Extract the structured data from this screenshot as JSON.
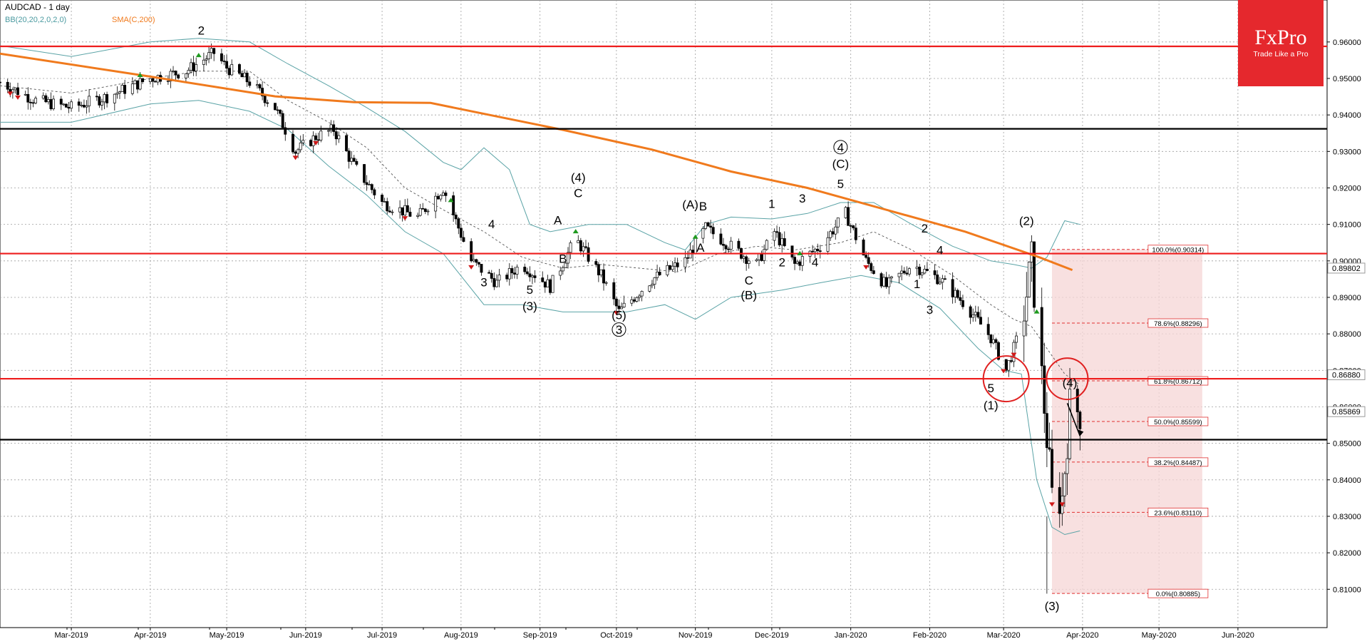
{
  "header": {
    "title": "AUDCAD - 1 day",
    "bb_label": "BB(20,20,2,0,2,0)",
    "sma_label": "SMA(C,200)"
  },
  "logo": {
    "name": "FxPro",
    "tagline": "Trade Like a Pro"
  },
  "colors": {
    "background": "#ffffff",
    "level_red": "#ee1c1c",
    "level_black": "#000000",
    "sma": "#f07a1d",
    "bollinger": "#5aa3a6",
    "grid": "#9e9e9e",
    "fib_zone": "#f6d5d5",
    "fib_line": "#e03030",
    "logo_bg": "#e5282d"
  },
  "chart_data": {
    "type": "candlestick",
    "symbol": "AUDCAD",
    "timeframe": "1 day",
    "xlim": [
      "2019-02-01",
      "2020-07-06"
    ],
    "ylim": [
      0.7995,
      0.9715
    ],
    "price_ticks": [
      "0.96000",
      "0.95000",
      "0.94000",
      "0.93000",
      "0.92000",
      "0.91000",
      "0.90000",
      "0.89000",
      "0.88000",
      "0.87000",
      "0.86000",
      "0.85000",
      "0.84000",
      "0.83000",
      "0.82000",
      "0.81000"
    ],
    "month_ticks": [
      {
        "label": "Mar-2019",
        "date": "2019-03-01"
      },
      {
        "label": "Apr-2019",
        "date": "2019-04-01"
      },
      {
        "label": "May-2019",
        "date": "2019-05-01"
      },
      {
        "label": "Jun-2019",
        "date": "2019-06-01"
      },
      {
        "label": "Jul-2019",
        "date": "2019-07-01"
      },
      {
        "label": "Aug-2019",
        "date": "2019-08-01"
      },
      {
        "label": "Sep-2019",
        "date": "2019-09-01"
      },
      {
        "label": "Oct-2019",
        "date": "2019-10-01"
      },
      {
        "label": "Nov-2019",
        "date": "2019-11-01"
      },
      {
        "label": "Dec-2019",
        "date": "2019-12-01"
      },
      {
        "label": "Jan-2020",
        "date": "2020-01-01"
      },
      {
        "label": "Feb-2020",
        "date": "2020-02-01"
      },
      {
        "label": "Mar-2020",
        "date": "2020-03-01"
      },
      {
        "label": "Apr-2020",
        "date": "2020-04-01"
      },
      {
        "label": "May-2020",
        "date": "2020-05-01"
      },
      {
        "label": "Jun-2020",
        "date": "2020-06-01"
      }
    ],
    "price_tags": [
      {
        "label": "0.89802",
        "value": 0.89802,
        "color": "#cccccc"
      },
      {
        "label": "0.86880",
        "value": 0.8688,
        "color": "#cccccc"
      },
      {
        "label": "0.85869",
        "value": 0.85869,
        "color": "#cccccc"
      }
    ],
    "levels": [
      {
        "value": 0.9588,
        "color": "red"
      },
      {
        "value": 0.9362,
        "color": "black"
      },
      {
        "value": 0.902,
        "color": "red"
      },
      {
        "value": 0.8677,
        "color": "red"
      },
      {
        "value": 0.851,
        "color": "black"
      }
    ],
    "fibonacci": {
      "start": "2020-03-20",
      "end": "2020-05-18",
      "levels": [
        {
          "label": "100.0%(0.90314)",
          "value": 0.90314
        },
        {
          "label": "78.6%(0.88296)",
          "value": 0.88296
        },
        {
          "label": "61.8%(0.86712)",
          "value": 0.86712
        },
        {
          "label": "50.0%(0.85599)",
          "value": 0.85599
        },
        {
          "label": "38.2%(0.84487)",
          "value": 0.84487
        },
        {
          "label": "23.6%(0.83110)",
          "value": 0.8311
        },
        {
          "label": "0.0%(0.80885)",
          "value": 0.80885
        }
      ]
    },
    "sma200": [
      [
        "2019-02-01",
        0.9568
      ],
      [
        "2019-04-01",
        0.9505
      ],
      [
        "2019-05-20",
        0.9451
      ],
      [
        "2019-06-20",
        0.9435
      ],
      [
        "2019-07-20",
        0.9433
      ],
      [
        "2019-09-10",
        0.9359
      ],
      [
        "2019-10-15",
        0.9305
      ],
      [
        "2019-11-15",
        0.9245
      ],
      [
        "2019-12-15",
        0.92
      ],
      [
        "2020-01-15",
        0.914
      ],
      [
        "2020-02-15",
        0.908
      ],
      [
        "2020-03-15",
        0.901
      ],
      [
        "2020-03-28",
        0.8975
      ]
    ],
    "bollinger_upper": [
      [
        "2019-02-01",
        0.959
      ],
      [
        "2019-03-01",
        0.956
      ],
      [
        "2019-04-01",
        0.96
      ],
      [
        "2019-04-20",
        0.961
      ],
      [
        "2019-05-10",
        0.96
      ],
      [
        "2019-05-25",
        0.954
      ],
      [
        "2019-06-10",
        0.948
      ],
      [
        "2019-06-25",
        0.942
      ],
      [
        "2019-07-10",
        0.9355
      ],
      [
        "2019-07-25",
        0.927
      ],
      [
        "2019-08-01",
        0.925
      ],
      [
        "2019-08-10",
        0.931
      ],
      [
        "2019-08-20",
        0.925
      ],
      [
        "2019-08-28",
        0.91
      ],
      [
        "2019-09-05",
        0.908
      ],
      [
        "2019-09-20",
        0.91
      ],
      [
        "2019-10-05",
        0.91
      ],
      [
        "2019-10-20",
        0.905
      ],
      [
        "2019-10-28",
        0.903
      ],
      [
        "2019-11-05",
        0.91
      ],
      [
        "2019-11-15",
        0.912
      ],
      [
        "2019-12-01",
        0.9115
      ],
      [
        "2019-12-15",
        0.913
      ],
      [
        "2019-12-28",
        0.916
      ],
      [
        "2020-01-10",
        0.916
      ],
      [
        "2020-01-25",
        0.91
      ],
      [
        "2020-02-10",
        0.904
      ],
      [
        "2020-02-25",
        0.9
      ],
      [
        "2020-03-05",
        0.899
      ],
      [
        "2020-03-12",
        0.898
      ],
      [
        "2020-03-18",
        0.901
      ],
      [
        "2020-03-25",
        0.911
      ],
      [
        "2020-03-31",
        0.91
      ]
    ],
    "bollinger_middle": [
      [
        "2019-02-01",
        0.948
      ],
      [
        "2019-03-01",
        0.946
      ],
      [
        "2019-04-01",
        0.95
      ],
      [
        "2019-04-20",
        0.952
      ],
      [
        "2019-05-10",
        0.952
      ],
      [
        "2019-05-25",
        0.944
      ],
      [
        "2019-06-10",
        0.938
      ],
      [
        "2019-06-25",
        0.931
      ],
      [
        "2019-07-10",
        0.92
      ],
      [
        "2019-07-25",
        0.914
      ],
      [
        "2019-08-10",
        0.908
      ],
      [
        "2019-08-25",
        0.901
      ],
      [
        "2019-09-10",
        0.898
      ],
      [
        "2019-09-25",
        0.899
      ],
      [
        "2019-10-10",
        0.898
      ],
      [
        "2019-10-25",
        0.897
      ],
      [
        "2019-11-10",
        0.902
      ],
      [
        "2019-11-25",
        0.904
      ],
      [
        "2019-12-10",
        0.903
      ],
      [
        "2019-12-28",
        0.905
      ],
      [
        "2020-01-10",
        0.908
      ],
      [
        "2020-01-25",
        0.903
      ],
      [
        "2020-02-10",
        0.896
      ],
      [
        "2020-02-25",
        0.888
      ],
      [
        "2020-03-05",
        0.884
      ],
      [
        "2020-03-12",
        0.882
      ],
      [
        "2020-03-18",
        0.876
      ],
      [
        "2020-03-25",
        0.869
      ],
      [
        "2020-03-31",
        0.866
      ]
    ],
    "bollinger_lower": [
      [
        "2019-02-01",
        0.938
      ],
      [
        "2019-03-01",
        0.938
      ],
      [
        "2019-04-01",
        0.943
      ],
      [
        "2019-04-20",
        0.944
      ],
      [
        "2019-05-10",
        0.941
      ],
      [
        "2019-05-25",
        0.936
      ],
      [
        "2019-06-10",
        0.926
      ],
      [
        "2019-06-25",
        0.918
      ],
      [
        "2019-07-10",
        0.908
      ],
      [
        "2019-07-25",
        0.902
      ],
      [
        "2019-08-10",
        0.888
      ],
      [
        "2019-08-25",
        0.888
      ],
      [
        "2019-09-10",
        0.886
      ],
      [
        "2019-09-25",
        0.886
      ],
      [
        "2019-10-05",
        0.886
      ],
      [
        "2019-10-20",
        0.888
      ],
      [
        "2019-11-01",
        0.884
      ],
      [
        "2019-11-15",
        0.89
      ],
      [
        "2019-12-05",
        0.892
      ],
      [
        "2019-12-20",
        0.894
      ],
      [
        "2020-01-05",
        0.896
      ],
      [
        "2020-01-20",
        0.894
      ],
      [
        "2020-02-05",
        0.887
      ],
      [
        "2020-02-20",
        0.876
      ],
      [
        "2020-03-01",
        0.87
      ],
      [
        "2020-03-08",
        0.869
      ],
      [
        "2020-03-14",
        0.84
      ],
      [
        "2020-03-20",
        0.827
      ],
      [
        "2020-03-25",
        0.825
      ],
      [
        "2020-03-31",
        0.826
      ]
    ],
    "close_path": [
      [
        "2019-02-01",
        0.949
      ],
      [
        "2019-02-15",
        0.944
      ],
      [
        "2019-03-01",
        0.942
      ],
      [
        "2019-03-15",
        0.945
      ],
      [
        "2019-04-01",
        0.95
      ],
      [
        "2019-04-15",
        0.952
      ],
      [
        "2019-04-26",
        0.957
      ],
      [
        "2019-05-01",
        0.953
      ],
      [
        "2019-05-10",
        0.949
      ],
      [
        "2019-05-20",
        0.942
      ],
      [
        "2019-05-28",
        0.93
      ],
      [
        "2019-06-05",
        0.934
      ],
      [
        "2019-06-12",
        0.936
      ],
      [
        "2019-06-20",
        0.926
      ],
      [
        "2019-07-01",
        0.916
      ],
      [
        "2019-07-15",
        0.912
      ],
      [
        "2019-07-25",
        0.92
      ],
      [
        "2019-08-05",
        0.9
      ],
      [
        "2019-08-15",
        0.894
      ],
      [
        "2019-08-25",
        0.899
      ],
      [
        "2019-09-05",
        0.893
      ],
      [
        "2019-09-15",
        0.906
      ],
      [
        "2019-09-25",
        0.896
      ],
      [
        "2019-10-02",
        0.886
      ],
      [
        "2019-10-15",
        0.895
      ],
      [
        "2019-10-28",
        0.9
      ],
      [
        "2019-11-05",
        0.909
      ],
      [
        "2019-11-15",
        0.904
      ],
      [
        "2019-11-25",
        0.899
      ],
      [
        "2019-12-02",
        0.908
      ],
      [
        "2019-12-10",
        0.899
      ],
      [
        "2019-12-20",
        0.904
      ],
      [
        "2019-12-30",
        0.913
      ],
      [
        "2020-01-07",
        0.9
      ],
      [
        "2020-01-15",
        0.893
      ],
      [
        "2020-01-25",
        0.899
      ],
      [
        "2020-02-05",
        0.895
      ],
      [
        "2020-02-15",
        0.888
      ],
      [
        "2020-02-25",
        0.879
      ],
      [
        "2020-03-02",
        0.87
      ],
      [
        "2020-03-08",
        0.882
      ],
      [
        "2020-03-12",
        0.9
      ],
      [
        "2020-03-17",
        0.86
      ],
      [
        "2020-03-20",
        0.835
      ],
      [
        "2020-03-24",
        0.835
      ],
      [
        "2020-03-27",
        0.86
      ],
      [
        "2020-03-31",
        0.8587
      ]
    ],
    "signals": [
      {
        "date": "2019-02-05",
        "type": "sell"
      },
      {
        "date": "2019-02-08",
        "type": "sell"
      },
      {
        "date": "2019-03-28",
        "type": "buy"
      },
      {
        "date": "2019-04-20",
        "type": "buy"
      },
      {
        "date": "2019-05-28",
        "type": "sell"
      },
      {
        "date": "2019-06-05",
        "type": "sell"
      },
      {
        "date": "2019-07-10",
        "type": "sell"
      },
      {
        "date": "2019-07-28",
        "type": "buy"
      },
      {
        "date": "2019-08-05",
        "type": "sell"
      },
      {
        "date": "2019-09-15",
        "type": "buy"
      },
      {
        "date": "2019-10-01",
        "type": "sell"
      },
      {
        "date": "2019-11-01",
        "type": "buy"
      },
      {
        "date": "2019-12-12",
        "type": "buy"
      },
      {
        "date": "2020-01-07",
        "type": "sell"
      },
      {
        "date": "2020-03-01",
        "type": "sell"
      },
      {
        "date": "2020-03-05",
        "type": "sell"
      },
      {
        "date": "2020-03-14",
        "type": "buy"
      },
      {
        "date": "2020-03-20",
        "type": "sell"
      },
      {
        "date": "2020-03-24",
        "type": "sell"
      }
    ],
    "wave_labels": [
      {
        "text": "2",
        "date": "2019-04-21",
        "price": 0.962
      },
      {
        "text": "4",
        "date": "2019-08-13",
        "price": 0.909
      },
      {
        "text": "3",
        "date": "2019-08-10",
        "price": 0.893
      },
      {
        "text": "5",
        "date": "2019-08-28",
        "price": 0.891
      },
      {
        "text": "(3)",
        "date": "2019-08-28",
        "price": 0.8865
      },
      {
        "text": "A",
        "date": "2019-09-08",
        "price": 0.91
      },
      {
        "text": "B",
        "date": "2019-09-10",
        "price": 0.8995
      },
      {
        "text": "(4)",
        "date": "2019-09-16",
        "price": 0.9218
      },
      {
        "text": "C",
        "date": "2019-09-16",
        "price": 0.9175
      },
      {
        "text": "(5)",
        "date": "2019-10-02",
        "price": 0.884
      },
      {
        "text": "3",
        "date": "2019-10-02",
        "price": 0.88,
        "circled": true
      },
      {
        "text": "(A)",
        "date": "2019-10-30",
        "price": 0.9143
      },
      {
        "text": "B",
        "date": "2019-11-04",
        "price": 0.9138
      },
      {
        "text": "A",
        "date": "2019-11-03",
        "price": 0.9025
      },
      {
        "text": "C",
        "date": "2019-11-22",
        "price": 0.8935
      },
      {
        "text": "(B)",
        "date": "2019-11-22",
        "price": 0.8895
      },
      {
        "text": "1",
        "date": "2019-12-01",
        "price": 0.9145
      },
      {
        "text": "2",
        "date": "2019-12-05",
        "price": 0.8985
      },
      {
        "text": "3",
        "date": "2019-12-13",
        "price": 0.916
      },
      {
        "text": "4",
        "date": "2019-12-18",
        "price": 0.8985
      },
      {
        "text": "4",
        "date": "2019-12-28",
        "price": 0.93,
        "circled": true
      },
      {
        "text": "(C)",
        "date": "2019-12-28",
        "price": 0.9255
      },
      {
        "text": "5",
        "date": "2019-12-28",
        "price": 0.92
      },
      {
        "text": "2",
        "date": "2020-01-30",
        "price": 0.9078
      },
      {
        "text": "4",
        "date": "2020-02-05",
        "price": 0.9018
      },
      {
        "text": "1",
        "date": "2020-01-27",
        "price": 0.8925
      },
      {
        "text": "3",
        "date": "2020-02-01",
        "price": 0.8855
      },
      {
        "text": "5",
        "date": "2020-02-25",
        "price": 0.864
      },
      {
        "text": "(1)",
        "date": "2020-02-25",
        "price": 0.8593
      },
      {
        "text": "(2)",
        "date": "2020-03-10",
        "price": 0.9098
      },
      {
        "text": "(4)",
        "date": "2020-03-27",
        "price": 0.8655
      },
      {
        "text": "(3)",
        "date": "2020-03-20",
        "price": 0.8043
      }
    ],
    "circles": [
      {
        "date": "2020-03-02",
        "price": 0.8677
      },
      {
        "date": "2020-03-26",
        "price": 0.8677
      }
    ],
    "projection_arrow": {
      "from": [
        "2020-03-26",
        0.861
      ],
      "to": [
        "2020-03-31",
        0.852
      ]
    }
  }
}
